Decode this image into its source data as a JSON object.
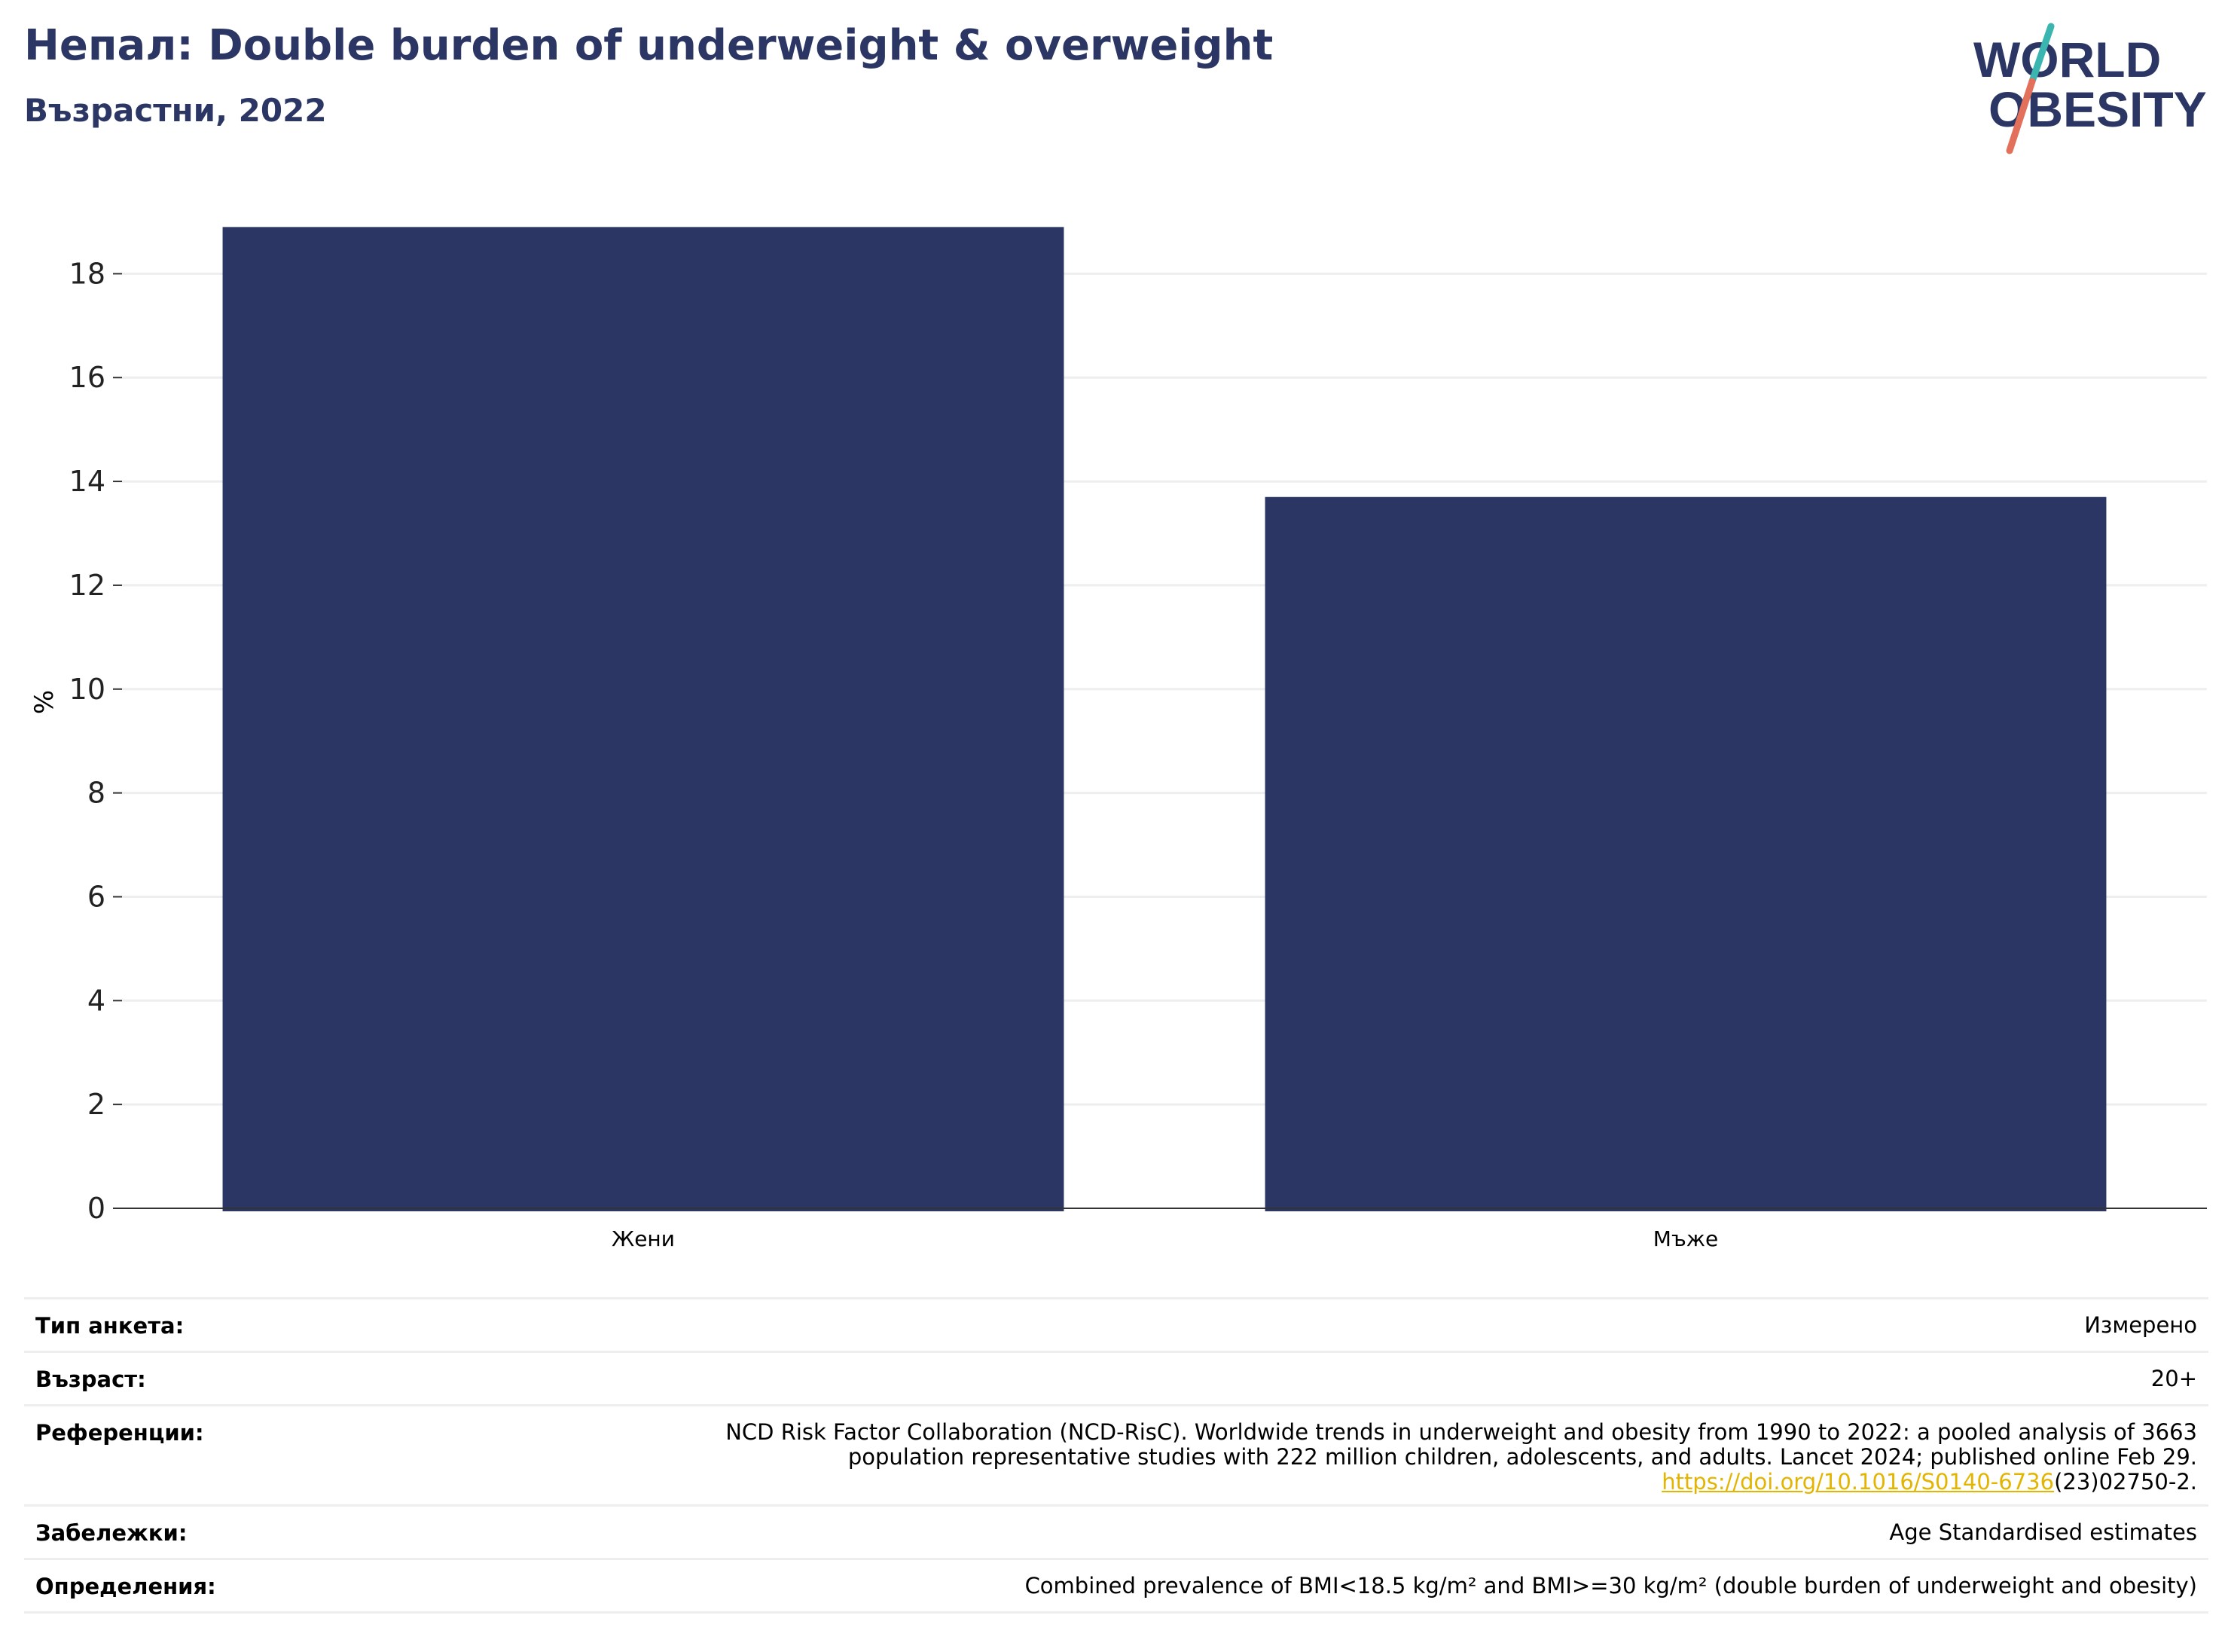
{
  "header": {
    "title": "Непал: Double burden of underweight & overweight",
    "subtitle": "Възрастни, 2022"
  },
  "logo": {
    "line1": "WORLD",
    "line2": "OBESITY",
    "colors": {
      "text": "#2b3664",
      "slash_top": "#3ab5b0",
      "slash_bottom": "#e2705a"
    }
  },
  "chart_data": {
    "type": "bar",
    "title": "Непал: Double burden of underweight & overweight",
    "subtitle": "Възрастни, 2022",
    "categories": [
      "Жени",
      "Мъже"
    ],
    "values": [
      18.9,
      13.7
    ],
    "xlabel": "",
    "ylabel": "%",
    "ylim": [
      0,
      19.5
    ],
    "yticks": [
      0,
      2,
      4,
      6,
      8,
      10,
      12,
      14,
      16,
      18
    ],
    "grid": true,
    "legend": "none",
    "bar_color": "#2b3664"
  },
  "meta": {
    "rows": [
      {
        "key": "Тип анкета:",
        "value": "Измерено"
      },
      {
        "key": "Възраст:",
        "value": "20+"
      },
      {
        "key": "Референции:",
        "lines": [
          "NCD Risk Factor Collaboration (NCD-RisC). Worldwide trends in underweight and obesity from 1990 to 2022: a pooled analysis of 3663",
          "population representative studies with 222 million children, adolescents, and adults. Lancet 2024; published online Feb 29."
        ],
        "link_text": "https://doi.org/10.1016/S0140-6736",
        "link_suffix": "(23)02750-2."
      },
      {
        "key": "Забележки:",
        "value": "Age Standardised estimates"
      },
      {
        "key": "Определения:",
        "value": "Combined prevalence of BMI<18.5 kg/m² and BMI>=30 kg/m² (double burden of underweight and obesity)"
      }
    ]
  }
}
